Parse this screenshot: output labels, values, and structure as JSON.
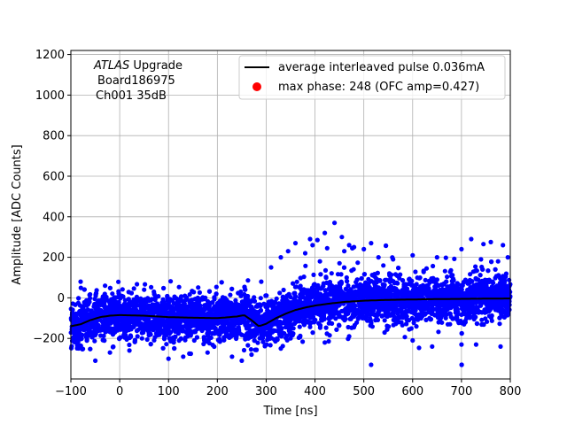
{
  "chart_data": {
    "type": "scatter",
    "xlabel": "Time [ns]",
    "ylabel": "Amplitude [ADC Counts]",
    "xlim": [
      -100,
      800
    ],
    "ylim": [
      -400,
      1220
    ],
    "x_ticks": [
      "−100",
      "0",
      "100",
      "200",
      "300",
      "400",
      "500",
      "600",
      "700",
      "800"
    ],
    "x_tick_values": [
      -100,
      0,
      100,
      200,
      300,
      400,
      500,
      600,
      700,
      800
    ],
    "y_ticks": [
      "−200",
      "0",
      "200",
      "400",
      "600",
      "800",
      "1000",
      "1200"
    ],
    "y_tick_values": [
      -200,
      0,
      200,
      400,
      600,
      800,
      1000,
      1200
    ],
    "grid": true,
    "legend_position": "top-right",
    "annotation": {
      "line1_italic": "ATLAS",
      "line1_rest": " Upgrade",
      "line2": "Board186975",
      "line3": "Ch001 35dB"
    },
    "series": [
      {
        "name": "average interleaved pulse 0.036mA",
        "kind": "line",
        "color": "#000000",
        "x": [
          -100,
          -80,
          -60,
          -40,
          -20,
          0,
          50,
          100,
          150,
          200,
          240,
          255,
          270,
          285,
          300,
          320,
          340,
          360,
          380,
          400,
          430,
          460,
          500,
          550,
          600,
          650,
          700,
          750,
          800
        ],
        "y": [
          -140,
          -130,
          -110,
          -95,
          -88,
          -85,
          -88,
          -95,
          -98,
          -100,
          -92,
          -85,
          -110,
          -140,
          -128,
          -100,
          -78,
          -60,
          -48,
          -38,
          -28,
          -20,
          -14,
          -10,
          -8,
          -6,
          -5,
          -4,
          -3
        ]
      },
      {
        "name": "max phase: 248 (OFC amp=0.427)",
        "kind": "marker",
        "color": "#ff0000",
        "x": [],
        "y": []
      },
      {
        "name": "samples",
        "kind": "scatter",
        "color": "#0000ff",
        "noise": 55,
        "outliers": [
          [
            440,
            370
          ],
          [
            420,
            320
          ],
          [
            390,
            290
          ],
          [
            405,
            285
          ],
          [
            395,
            260
          ],
          [
            360,
            270
          ],
          [
            455,
            300
          ],
          [
            470,
            260
          ],
          [
            480,
            250
          ],
          [
            500,
            240
          ],
          [
            515,
            270
          ],
          [
            530,
            200
          ],
          [
            345,
            230
          ],
          [
            330,
            200
          ],
          [
            310,
            150
          ],
          [
            290,
            80
          ],
          [
            460,
            230
          ],
          [
            425,
            245
          ],
          [
            380,
            220
          ],
          [
            410,
            180
          ],
          [
            720,
            290
          ],
          [
            760,
            275
          ],
          [
            745,
            265
          ],
          [
            785,
            260
          ],
          [
            795,
            200
          ],
          [
            775,
            180
          ],
          [
            700,
            240
          ],
          [
            650,
            200
          ],
          [
            740,
            190
          ],
          [
            600,
            210
          ],
          [
            560,
            190
          ],
          [
            540,
            160
          ],
          [
            100,
            -300
          ],
          [
            130,
            -290
          ],
          [
            -50,
            -310
          ],
          [
            -20,
            -270
          ],
          [
            230,
            -290
          ],
          [
            250,
            -310
          ],
          [
            270,
            -280
          ],
          [
            330,
            -250
          ],
          [
            420,
            -220
          ],
          [
            600,
            -210
          ],
          [
            700,
            -230
          ],
          [
            780,
            -240
          ],
          [
            50,
            40
          ],
          [
            70,
            30
          ],
          [
            -30,
            60
          ],
          [
            -80,
            80
          ],
          [
            0,
            10
          ],
          [
            160,
            0
          ],
          [
            20,
            -260
          ],
          [
            180,
            -270
          ],
          [
            260,
            -30
          ],
          [
            350,
            -200
          ],
          [
            470,
            -190
          ],
          [
            640,
            -240
          ],
          [
            730,
            -230
          ]
        ]
      }
    ]
  }
}
